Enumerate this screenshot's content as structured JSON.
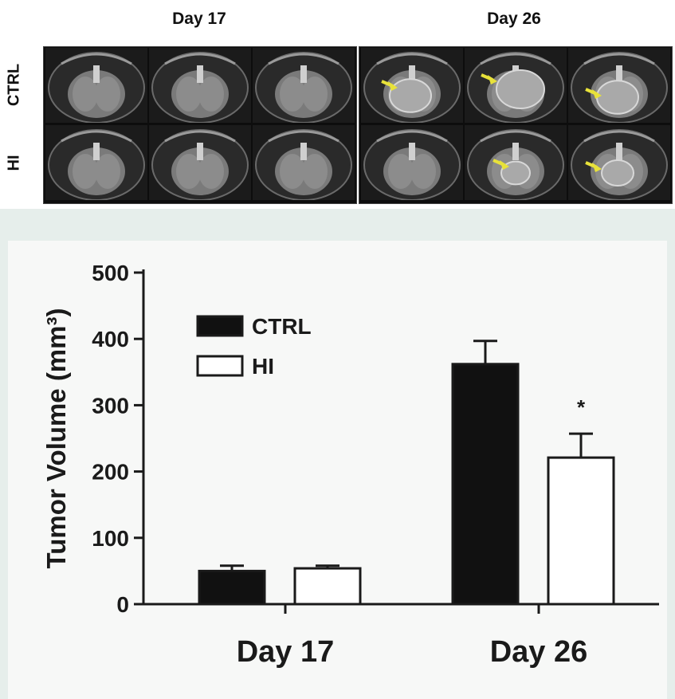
{
  "mri_panel": {
    "columns": [
      "Day 17",
      "Day 26"
    ],
    "rows": [
      "CTRL",
      "HI"
    ],
    "arrow_color": "#e8e23a"
  },
  "chart_data": {
    "type": "bar",
    "categories": [
      "Day 17",
      "Day 26"
    ],
    "series": [
      {
        "name": "CTRL",
        "values": [
          50,
          362
        ],
        "errors": [
          8,
          35
        ],
        "fill": "#111111"
      },
      {
        "name": "HI",
        "values": [
          54,
          221
        ],
        "errors": [
          4,
          36
        ],
        "fill": "#ffffff"
      }
    ],
    "ylabel": "Tumor Volume (mm³)",
    "ylim": [
      0,
      500
    ],
    "yticks": [
      0,
      100,
      200,
      300,
      400,
      500
    ],
    "annotations": [
      {
        "text": "*",
        "category": "Day 26",
        "series": "HI"
      }
    ],
    "legend_position": "top-left",
    "grid": false
  }
}
